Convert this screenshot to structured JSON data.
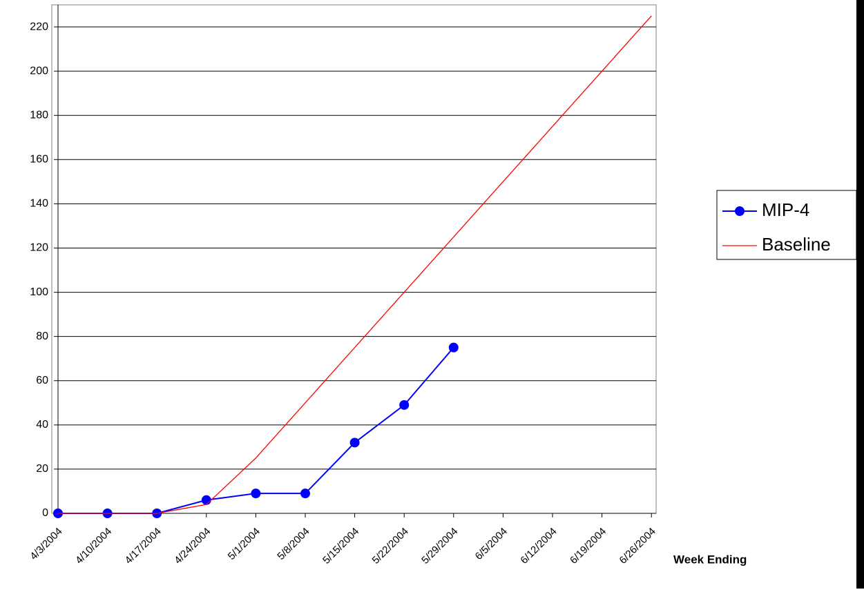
{
  "chart_data": {
    "type": "line",
    "x_label": "Week Ending",
    "categories": [
      "4/3/2004",
      "4/10/2004",
      "4/17/2004",
      "4/24/2004",
      "5/1/2004",
      "5/8/2004",
      "5/15/2004",
      "5/22/2004",
      "5/29/2004",
      "6/5/2004",
      "6/12/2004",
      "6/19/2004",
      "6/26/2004"
    ],
    "series": [
      {
        "name": "MIP-4",
        "color": "#0000ff",
        "marker": "circle",
        "values": [
          0,
          0,
          0,
          6,
          9,
          9,
          32,
          49,
          75,
          null,
          null,
          null,
          null
        ]
      },
      {
        "name": "Baseline",
        "color": "#ff0000",
        "marker": "none",
        "values": [
          0,
          0,
          0,
          4,
          25,
          50,
          75,
          100,
          125,
          150,
          175,
          200,
          225
        ]
      }
    ],
    "ylim": [
      0,
      230
    ],
    "yticks": [
      0,
      20,
      40,
      60,
      80,
      100,
      120,
      140,
      160,
      180,
      200,
      220
    ],
    "grid": true,
    "legend": "right"
  }
}
